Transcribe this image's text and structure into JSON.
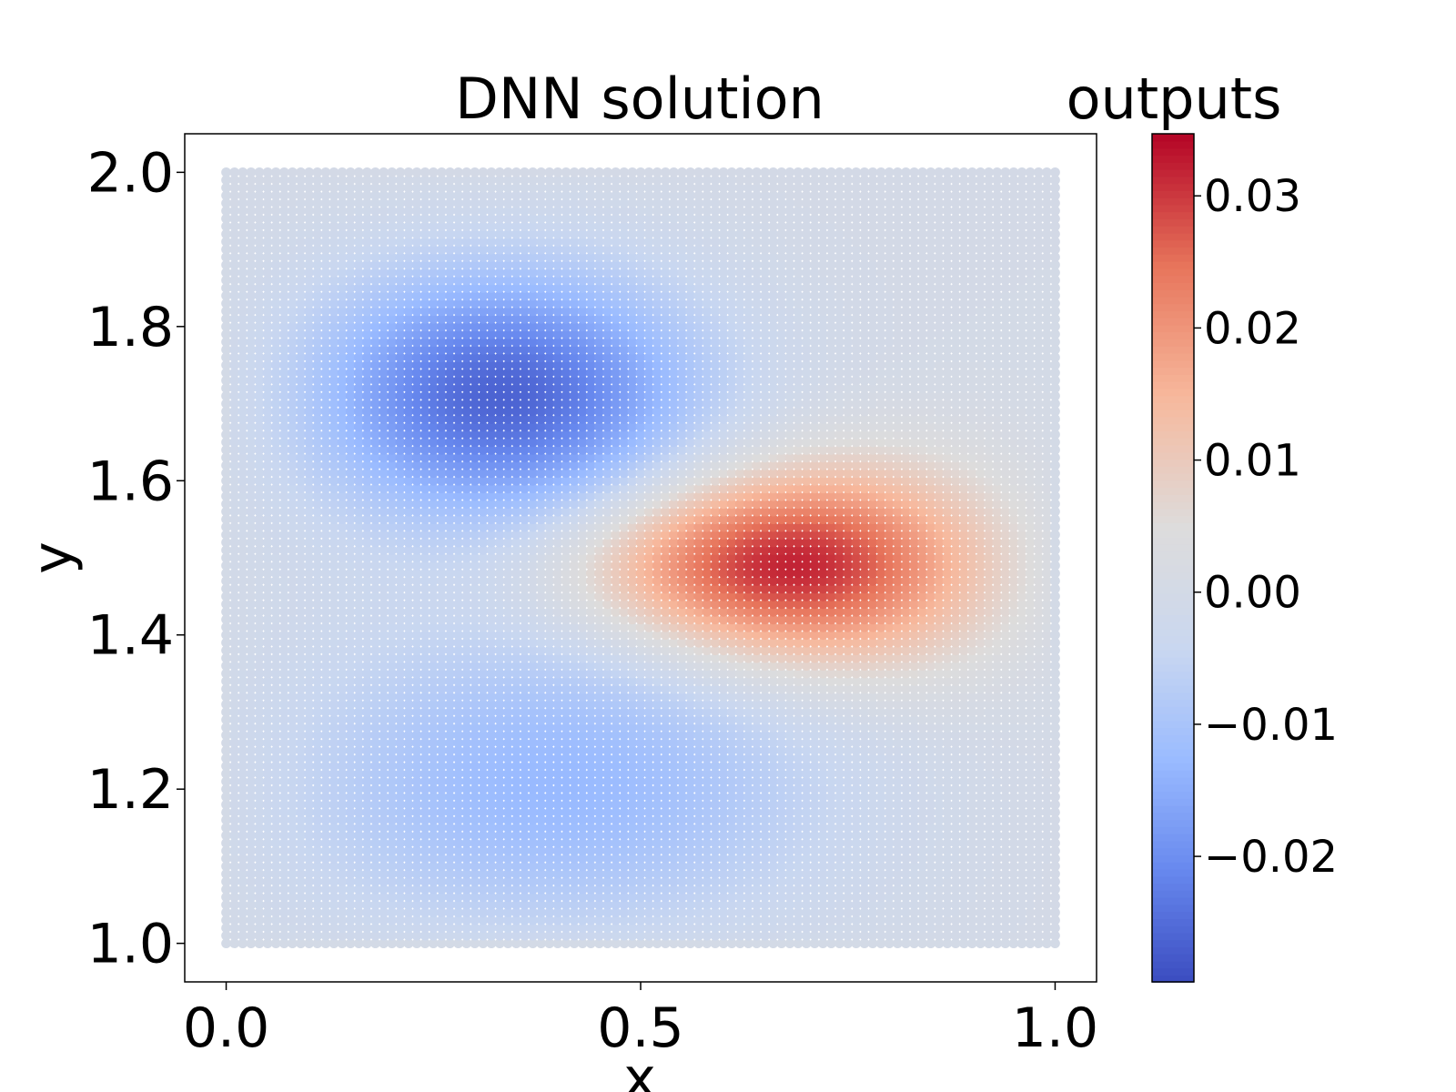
{
  "chart_data": {
    "type": "heatmap",
    "title": "DNN solution",
    "xlabel": "x",
    "ylabel": "y",
    "xlim": [
      -0.05,
      1.05
    ],
    "ylim": [
      0.95,
      2.05
    ],
    "x_ticks": [
      0.0,
      0.5,
      1.0
    ],
    "x_tick_labels": [
      "0.0",
      "0.5",
      "1.0"
    ],
    "y_ticks": [
      1.0,
      1.2,
      1.4,
      1.6,
      1.8,
      2.0
    ],
    "y_tick_labels": [
      "1.0",
      "1.2",
      "1.4",
      "1.6",
      "1.8",
      "2.0"
    ],
    "grid_points": {
      "x_range": [
        0.0,
        1.0
      ],
      "y_range": [
        1.0,
        2.0
      ],
      "n_x": 101,
      "n_y": 101
    },
    "features": [
      {
        "type": "minimum",
        "x": 0.32,
        "y": 1.72,
        "value": -0.029
      },
      {
        "type": "maximum",
        "x": 0.69,
        "y": 1.49,
        "value": 0.035
      },
      {
        "type": "minimum",
        "x": 0.38,
        "y": 1.18,
        "value": -0.015
      }
    ],
    "boundary_value": 0.0,
    "grid": false,
    "colorbar": {
      "label": "outputs",
      "colormap": "coolwarm",
      "vmin": -0.0295,
      "vmax": 0.0347,
      "ticks": [
        -0.02,
        -0.01,
        0.0,
        0.01,
        0.02,
        0.03
      ],
      "tick_labels": [
        "−0.02",
        "−0.01",
        "0.00",
        "0.01",
        "0.02",
        "0.03"
      ],
      "color_stops": [
        "#3b4cc0",
        "#6788ee",
        "#9abbff",
        "#c9d7f0",
        "#dddcdc",
        "#f7b89c",
        "#e7745b",
        "#b40426"
      ]
    }
  }
}
